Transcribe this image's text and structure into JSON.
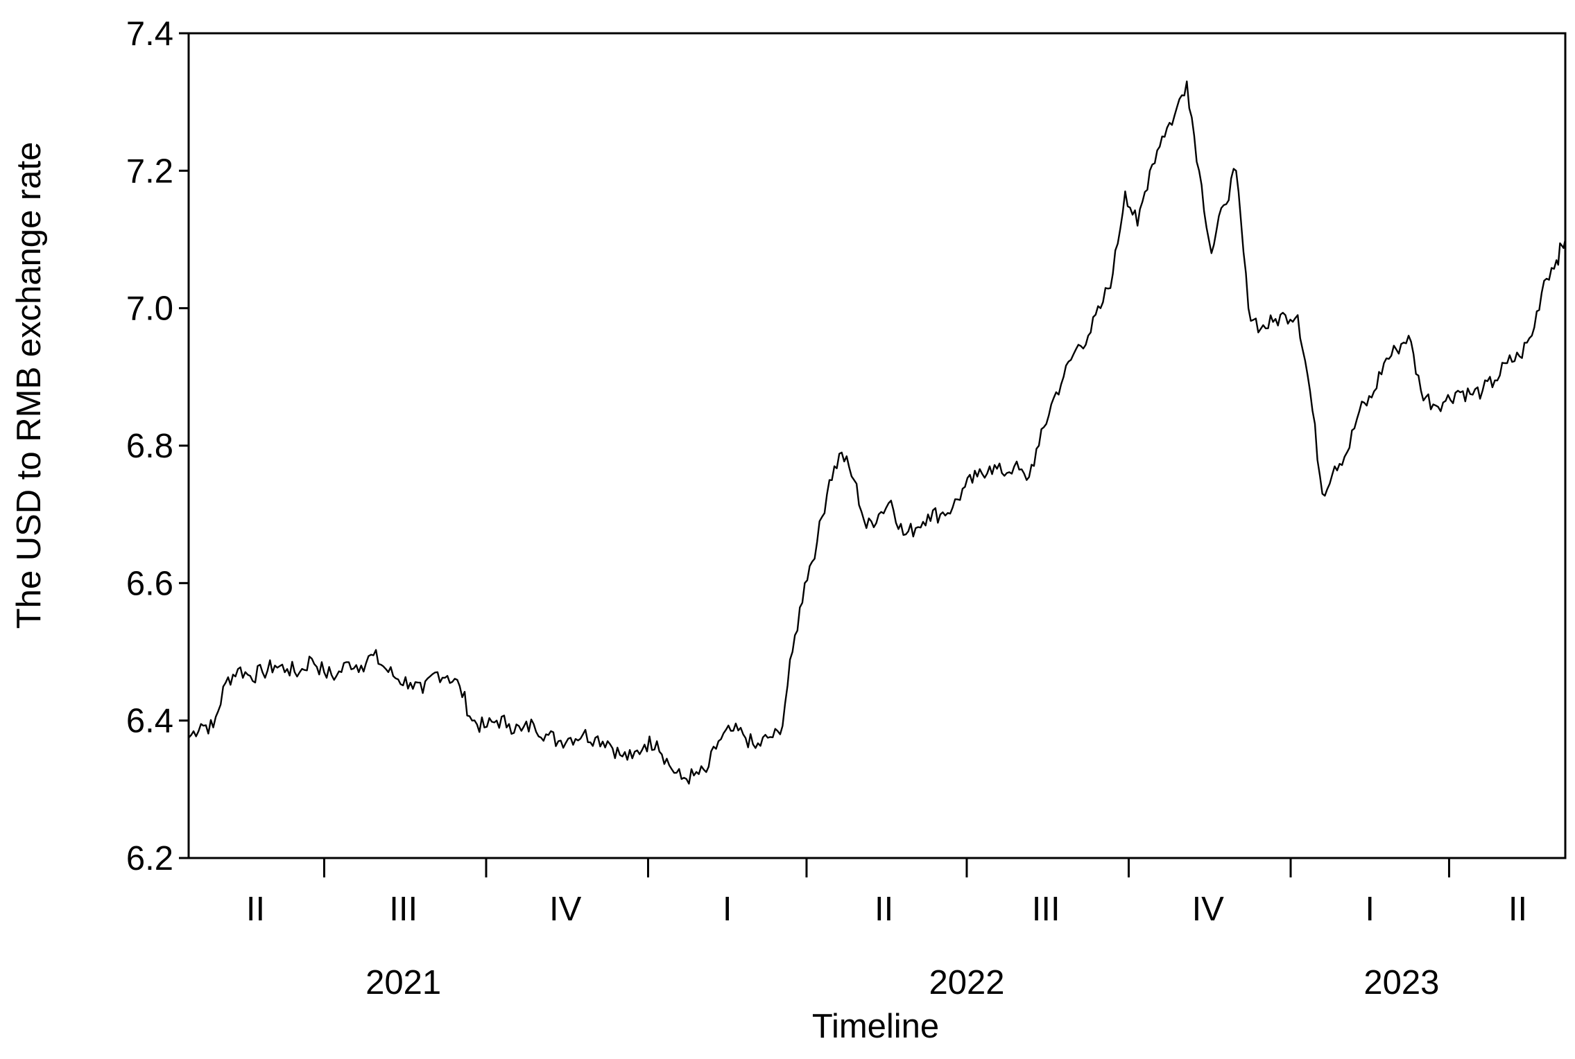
{
  "chart_data": {
    "type": "line",
    "title": "",
    "xlabel": "Timeline",
    "ylabel": "The USD to RMB exchange rate",
    "ylim": [
      6.2,
      7.4
    ],
    "yticks": [
      "6.2",
      "6.4",
      "6.6",
      "6.8",
      "7.0",
      "7.2",
      "7.4"
    ],
    "grid": false,
    "legend": "none",
    "x_range": [
      "2021-04-15",
      "2023-06-06"
    ],
    "quarter_boundaries": [
      "2021-07-01",
      "2021-10-01",
      "2022-01-01",
      "2022-04-01",
      "2022-07-01",
      "2022-10-01",
      "2023-01-01",
      "2023-04-01"
    ],
    "quarter_labels": [
      {
        "label": "II",
        "center": "2021-05-23"
      },
      {
        "label": "III",
        "center": "2021-08-15"
      },
      {
        "label": "IV",
        "center": "2021-11-15"
      },
      {
        "label": "I",
        "center": "2022-02-15"
      },
      {
        "label": "II",
        "center": "2022-05-15"
      },
      {
        "label": "III",
        "center": "2022-08-15"
      },
      {
        "label": "IV",
        "center": "2022-11-15"
      },
      {
        "label": "I",
        "center": "2023-02-15"
      },
      {
        "label": "II",
        "center": "2023-05-10"
      }
    ],
    "year_labels": [
      {
        "label": "2021",
        "center": "2021-08-15"
      },
      {
        "label": "2022",
        "center": "2022-07-01"
      },
      {
        "label": "2023",
        "center": "2023-03-05"
      }
    ],
    "series": [
      {
        "x": [
          "2021-04-15",
          "2021-04-22",
          "2021-04-29",
          "2021-05-06",
          "2021-05-13",
          "2021-05-20",
          "2021-05-27",
          "2021-06-03",
          "2021-06-10",
          "2021-06-17",
          "2021-06-24",
          "2021-07-01",
          "2021-07-08",
          "2021-07-15",
          "2021-07-22",
          "2021-07-29",
          "2021-08-05",
          "2021-08-12",
          "2021-08-19",
          "2021-08-26",
          "2021-09-02",
          "2021-09-09",
          "2021-09-16",
          "2021-09-23",
          "2021-09-30",
          "2021-10-07",
          "2021-10-14",
          "2021-10-21",
          "2021-10-28",
          "2021-11-04",
          "2021-11-11",
          "2021-11-18",
          "2021-11-25",
          "2021-12-02",
          "2021-12-09",
          "2021-12-16",
          "2021-12-23",
          "2021-12-30",
          "2022-01-06",
          "2022-01-13",
          "2022-01-20",
          "2022-01-27",
          "2022-02-03",
          "2022-02-10",
          "2022-02-17",
          "2022-02-24",
          "2022-03-03",
          "2022-03-10",
          "2022-03-17",
          "2022-03-24",
          "2022-03-31",
          "2022-04-07",
          "2022-04-14",
          "2022-04-21",
          "2022-04-28",
          "2022-05-05",
          "2022-05-12",
          "2022-05-19",
          "2022-05-26",
          "2022-06-02",
          "2022-06-09",
          "2022-06-16",
          "2022-06-23",
          "2022-06-30",
          "2022-07-07",
          "2022-07-14",
          "2022-07-21",
          "2022-07-28",
          "2022-08-04",
          "2022-08-11",
          "2022-08-18",
          "2022-08-25",
          "2022-09-01",
          "2022-09-08",
          "2022-09-15",
          "2022-09-22",
          "2022-09-29",
          "2022-10-06",
          "2022-10-13",
          "2022-10-20",
          "2022-10-27",
          "2022-11-03",
          "2022-11-10",
          "2022-11-17",
          "2022-11-24",
          "2022-12-01",
          "2022-12-08",
          "2022-12-15",
          "2022-12-22",
          "2022-12-29",
          "2023-01-05",
          "2023-01-12",
          "2023-01-19",
          "2023-01-26",
          "2023-02-02",
          "2023-02-09",
          "2023-02-16",
          "2023-02-23",
          "2023-03-02",
          "2023-03-09",
          "2023-03-16",
          "2023-03-23",
          "2023-03-30",
          "2023-04-06",
          "2023-04-13",
          "2023-04-20",
          "2023-04-27",
          "2023-05-04",
          "2023-05-11",
          "2023-05-18",
          "2023-05-25",
          "2023-06-01",
          "2023-06-06"
        ],
        "y": [
          6.375,
          6.395,
          6.39,
          6.455,
          6.475,
          6.465,
          6.47,
          6.48,
          6.475,
          6.47,
          6.49,
          6.47,
          6.465,
          6.485,
          6.48,
          6.495,
          6.475,
          6.46,
          6.455,
          6.44,
          6.47,
          6.465,
          6.45,
          6.4,
          6.39,
          6.4,
          6.395,
          6.385,
          6.395,
          6.38,
          6.37,
          6.375,
          6.38,
          6.375,
          6.37,
          6.35,
          6.345,
          6.365,
          6.37,
          6.335,
          6.315,
          6.32,
          6.325,
          6.37,
          6.385,
          6.38,
          6.36,
          6.375,
          6.38,
          6.5,
          6.6,
          6.66,
          6.75,
          6.79,
          6.75,
          6.68,
          6.7,
          6.72,
          6.67,
          6.68,
          6.7,
          6.7,
          6.71,
          6.74,
          6.755,
          6.77,
          6.76,
          6.77,
          6.75,
          6.8,
          6.86,
          6.9,
          6.94,
          6.96,
          7.0,
          7.05,
          7.17,
          7.12,
          7.2,
          7.25,
          7.28,
          7.33,
          7.2,
          7.08,
          7.15,
          7.2,
          7.0,
          6.97,
          6.98,
          6.99,
          6.99,
          6.88,
          6.73,
          6.77,
          6.79,
          6.85,
          6.87,
          6.92,
          6.94,
          6.96,
          6.88,
          6.86,
          6.865,
          6.88,
          6.875,
          6.88,
          6.895,
          6.92,
          6.93,
          6.96,
          7.04,
          7.07,
          7.1
        ]
      }
    ]
  }
}
